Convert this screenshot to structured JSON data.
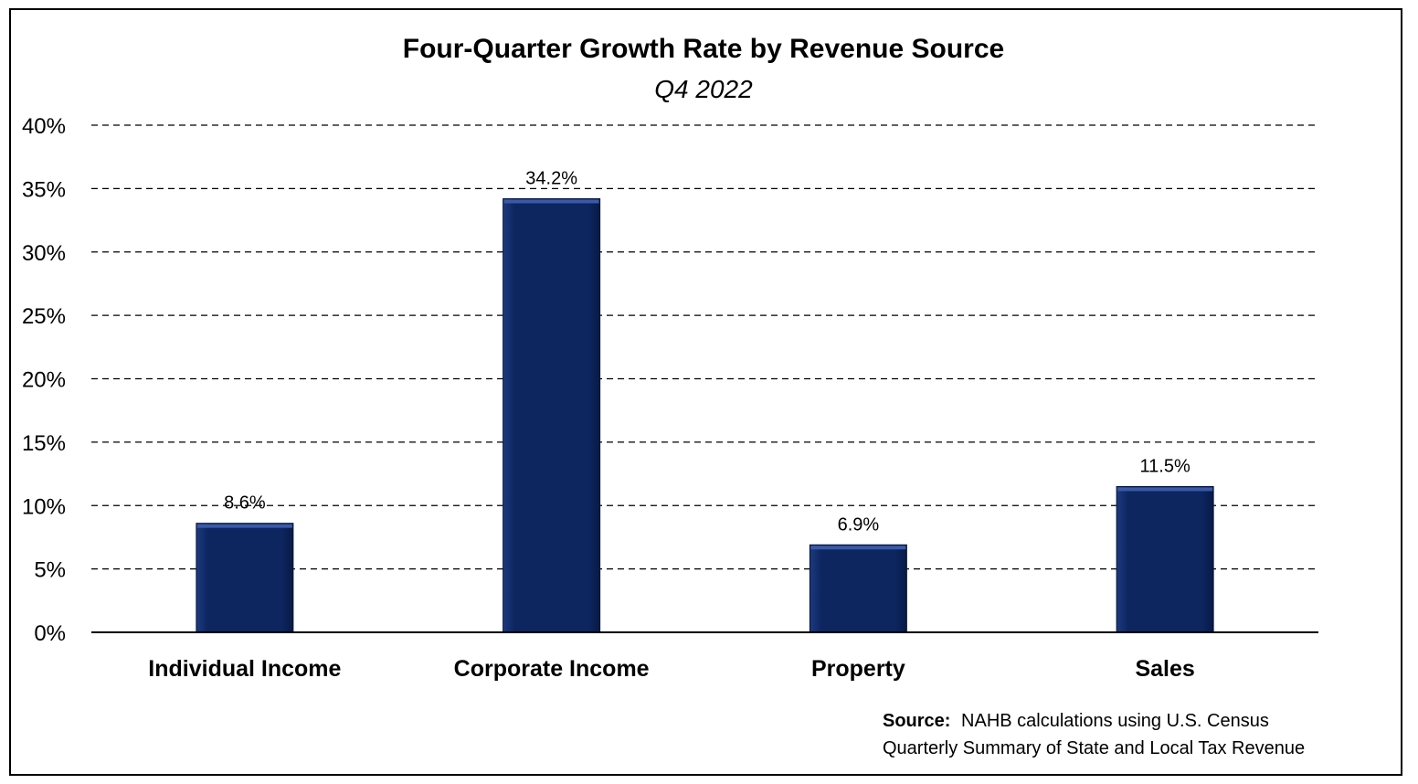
{
  "chart_data": {
    "type": "bar",
    "title": "Four-Quarter Growth Rate by Revenue Source",
    "subtitle": "Q4 2022",
    "categories": [
      "Individual Income",
      "Corporate Income",
      "Property",
      "Sales"
    ],
    "values": [
      8.6,
      34.2,
      6.9,
      11.5
    ],
    "data_labels": [
      "8.6%",
      "34.2%",
      "6.9%",
      "11.5%"
    ],
    "ylim": [
      0,
      40
    ],
    "yticks": [
      0,
      5,
      10,
      15,
      20,
      25,
      30,
      35,
      40
    ],
    "ytick_labels": [
      "0%",
      "5%",
      "10%",
      "15%",
      "20%",
      "25%",
      "30%",
      "35%",
      "40%"
    ],
    "xlabel": "",
    "ylabel": "",
    "grid": "horizontal-dashed",
    "legend": "none",
    "bar_color": "#0d2660"
  },
  "source": {
    "label": "Source:",
    "line1": "NAHB calculations using U.S. Census",
    "line2": "Quarterly Summary of State and Local Tax Revenue"
  }
}
